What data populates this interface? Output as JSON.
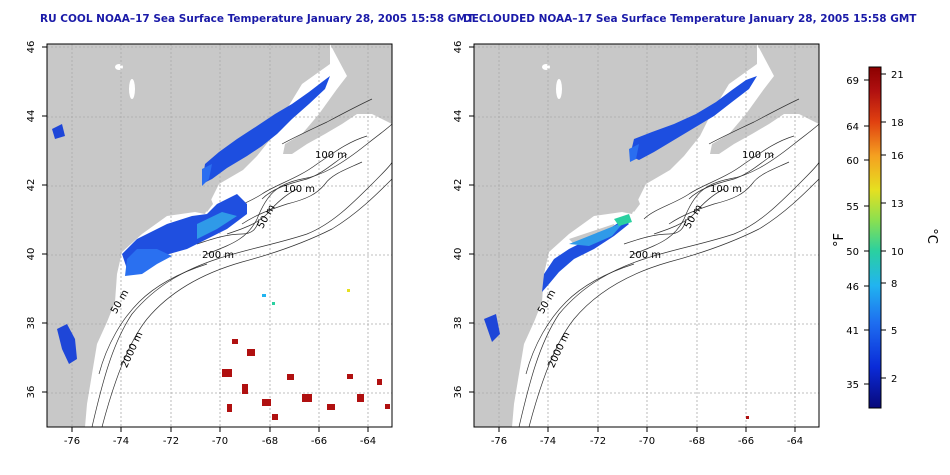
{
  "left_panel": {
    "title": "RU COOL NOAA–17 Sea Surface Temperature January 28, 2005 15:58 GMT",
    "x_ticks": [
      "-76",
      "-74",
      "-72",
      "-70",
      "-68",
      "-66",
      "-64"
    ],
    "y_ticks": [
      "46",
      "44",
      "42",
      "40",
      "38",
      "36"
    ],
    "contours": [
      "100 m",
      "100 m",
      "50 m",
      "200 m",
      "50 m",
      "2000 m"
    ]
  },
  "right_panel": {
    "title": "DECLOUDED NOAA–17 Sea Surface Temperature January 28, 2005 15:58 GMT",
    "x_ticks": [
      "-76",
      "-74",
      "-72",
      "-70",
      "-68",
      "-66",
      "-64"
    ],
    "y_ticks": [
      "46",
      "44",
      "42",
      "40",
      "38",
      "36"
    ],
    "contours": [
      "100 m",
      "100 m",
      "50 m",
      "200 m",
      "50 m",
      "2000 m"
    ]
  },
  "colorbar": {
    "f_label": "°F",
    "c_label": "°C",
    "f_ticks": [
      "69",
      "64",
      "60",
      "55",
      "50",
      "46",
      "41",
      "35"
    ],
    "c_ticks": [
      "21",
      "18",
      "16",
      "13",
      "10",
      "8",
      "5",
      "2"
    ],
    "colors": [
      "#08087a",
      "#0a2bd8",
      "#1e6ef0",
      "#21b4f0",
      "#2ad0a0",
      "#8ae050",
      "#e6e020",
      "#f5a020",
      "#e04010",
      "#b01010",
      "#8b0000"
    ]
  }
}
